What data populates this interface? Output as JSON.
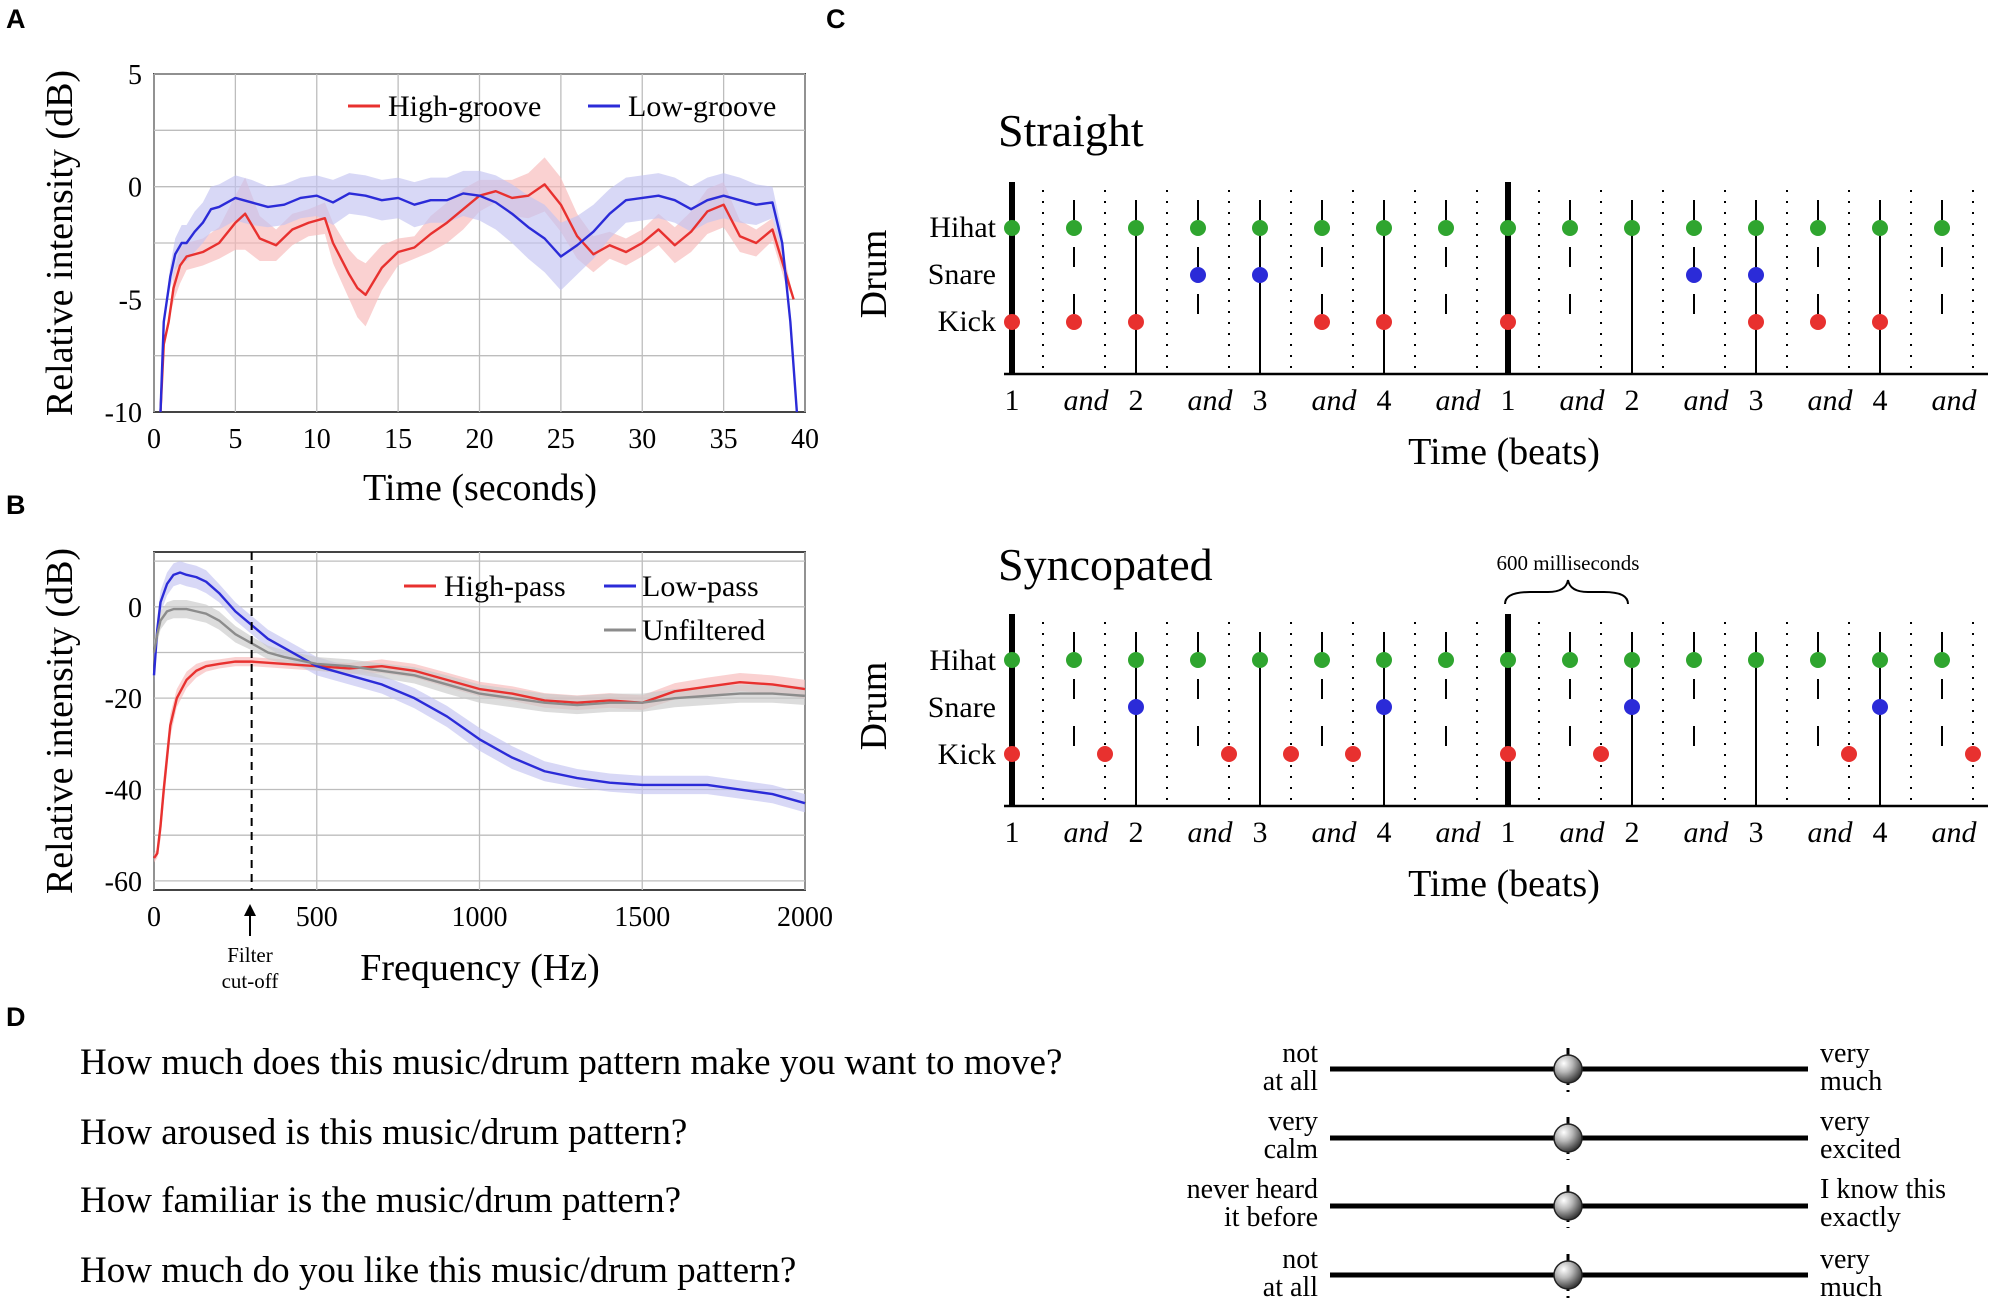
{
  "panel_labels": {
    "a": "A",
    "b": "B",
    "c": "C",
    "d": "D"
  },
  "colors": {
    "red": "#e8312f",
    "blue": "#2b2bd8",
    "gray": "#8c8c8c",
    "green": "#2fa52f",
    "red_band": "#f7b8b8",
    "blue_band": "#c3c3f1",
    "gray_band": "#c9c9c9"
  },
  "chart_data": [
    {
      "id": "A",
      "type": "line",
      "xlabel": "Time (seconds)",
      "ylabel": "Relative intensity (dB)",
      "xlim": [
        0,
        40
      ],
      "ylim": [
        -10,
        5
      ],
      "xticks": [
        "0",
        "5",
        "10",
        "15",
        "20",
        "25",
        "30",
        "35",
        "40"
      ],
      "yticks": [
        "5",
        "0",
        "-5",
        "-10"
      ],
      "grid": true,
      "legend_position": "top-right",
      "series": [
        {
          "name": "High-groove",
          "x": [
            0.4,
            0.6,
            0.9,
            1.2,
            1.6,
            2,
            3,
            4,
            5,
            5.6,
            6.5,
            7.5,
            8.5,
            9.5,
            10.5,
            11,
            12,
            12.5,
            13,
            14,
            15,
            16,
            17,
            18,
            19,
            20,
            21,
            22,
            23,
            24,
            25,
            26,
            27,
            28,
            29,
            30,
            31,
            32,
            33,
            34,
            35,
            36,
            37,
            38,
            38.8,
            39.3
          ],
          "y": [
            -10,
            -7,
            -6,
            -4.5,
            -3.5,
            -3.1,
            -2.9,
            -2.5,
            -1.6,
            -1.2,
            -2.3,
            -2.6,
            -1.9,
            -1.6,
            -1.4,
            -2.5,
            -3.9,
            -4.5,
            -4.8,
            -3.6,
            -2.9,
            -2.7,
            -2.1,
            -1.6,
            -1.0,
            -0.4,
            -0.2,
            -0.5,
            -0.4,
            0.1,
            -0.8,
            -2.2,
            -3.0,
            -2.6,
            -2.9,
            -2.5,
            -1.9,
            -2.6,
            -2.0,
            -1.1,
            -0.8,
            -2.2,
            -2.5,
            -1.9,
            -3.8,
            -5.0
          ],
          "band": [
            0,
            0,
            0,
            0.6,
            0.8,
            0.6,
            0.6,
            0.7,
            1.2,
            1.6,
            1.0,
            0.7,
            0.7,
            0.6,
            0.7,
            0.9,
            1.1,
            1.3,
            1.4,
            1.0,
            0.6,
            0.5,
            0.8,
            0.9,
            0.9,
            0.7,
            0.5,
            0.8,
            1.0,
            1.2,
            1.2,
            1.0,
            0.8,
            0.6,
            0.6,
            0.6,
            0.7,
            0.8,
            0.9,
            1.0,
            1.0,
            0.7,
            0.6,
            0.5,
            0.5,
            0
          ]
        },
        {
          "name": "Low-groove",
          "x": [
            0.4,
            0.6,
            1.0,
            1.3,
            1.7,
            2,
            2.5,
            3,
            3.5,
            4,
            5,
            6,
            7,
            8,
            9,
            10,
            11,
            12,
            13,
            14,
            15,
            16,
            17,
            18,
            19,
            20,
            21,
            22,
            23,
            24,
            25,
            26,
            27,
            28,
            29,
            30,
            31,
            32,
            33,
            34,
            35,
            36,
            37,
            38,
            38.6,
            39.1,
            39.5
          ],
          "y": [
            -10,
            -6,
            -4,
            -3.0,
            -2.5,
            -2.5,
            -2.0,
            -1.6,
            -1.0,
            -0.9,
            -0.5,
            -0.7,
            -0.9,
            -0.8,
            -0.5,
            -0.4,
            -0.7,
            -0.3,
            -0.4,
            -0.6,
            -0.5,
            -0.8,
            -0.6,
            -0.6,
            -0.3,
            -0.4,
            -0.7,
            -1.2,
            -1.8,
            -2.3,
            -3.1,
            -2.6,
            -2.0,
            -1.2,
            -0.6,
            -0.5,
            -0.4,
            -0.6,
            -1.0,
            -0.6,
            -0.4,
            -0.6,
            -0.8,
            -0.7,
            -2.5,
            -6.0,
            -10
          ],
          "band": [
            0,
            0,
            0.5,
            0.7,
            0.8,
            0.8,
            0.9,
            0.9,
            1.0,
            1.0,
            1.0,
            1.0,
            0.9,
            0.9,
            0.9,
            0.9,
            1.0,
            0.9,
            0.9,
            0.9,
            0.9,
            1.0,
            1.0,
            1.0,
            1.0,
            1.1,
            1.2,
            1.3,
            1.4,
            1.5,
            1.5,
            1.3,
            1.2,
            1.1,
            1.0,
            1.0,
            1.0,
            1.0,
            1.0,
            1.0,
            1.0,
            1.0,
            0.9,
            0.7,
            0.5,
            0,
            0
          ]
        }
      ]
    },
    {
      "id": "B",
      "type": "line",
      "xlabel": "Frequency (Hz)",
      "ylabel": "Relative intensity (dB)",
      "xlim": [
        0,
        2000
      ],
      "ylim": [
        -62,
        12
      ],
      "xticks": [
        "0",
        "500",
        "1000",
        "1500",
        "2000"
      ],
      "yticks": [
        "0",
        "-20",
        "-40",
        "-60"
      ],
      "grid": true,
      "legend_position": "top-right",
      "annotation": {
        "x": 300,
        "label_line1": "Filter",
        "label_line2": "cut-off"
      },
      "series": [
        {
          "name": "High-pass",
          "x": [
            0,
            10,
            20,
            30,
            40,
            50,
            70,
            100,
            130,
            160,
            200,
            250,
            300,
            400,
            500,
            600,
            700,
            800,
            900,
            1000,
            1100,
            1200,
            1300,
            1400,
            1500,
            1600,
            1700,
            1800,
            1900,
            2000
          ],
          "y": [
            -55,
            -54,
            -48,
            -40,
            -33,
            -26,
            -20,
            -16,
            -14,
            -13,
            -12.5,
            -12,
            -12,
            -12.5,
            -13,
            -13.5,
            -13,
            -14,
            -16,
            -18,
            -19,
            -20.5,
            -21,
            -20.5,
            -21,
            -18.5,
            -17.5,
            -16.5,
            -17,
            -18
          ],
          "band": [
            1,
            1,
            3,
            3,
            3,
            2.5,
            2,
            1.8,
            1.5,
            1.2,
            1,
            1,
            1,
            1,
            1,
            1.2,
            1.5,
            1.5,
            1.6,
            1.6,
            1.6,
            1.6,
            1.6,
            1.6,
            1.6,
            1.8,
            2,
            2,
            2,
            2
          ]
        },
        {
          "name": "Low-pass",
          "x": [
            0,
            10,
            20,
            40,
            60,
            80,
            100,
            130,
            160,
            200,
            250,
            300,
            350,
            400,
            500,
            600,
            700,
            800,
            900,
            1000,
            1100,
            1200,
            1300,
            1400,
            1500,
            1600,
            1700,
            1800,
            1900,
            2000
          ],
          "y": [
            -15,
            -5,
            1,
            5,
            7,
            7.5,
            7,
            6.5,
            5.5,
            3,
            -1,
            -4,
            -7,
            -9,
            -13,
            -15,
            -17,
            -20,
            -24,
            -29,
            -33,
            -36,
            -37.5,
            -38.5,
            -39,
            -39,
            -39,
            -40,
            -41,
            -43
          ],
          "band": [
            2,
            2.5,
            2.5,
            2.5,
            2.5,
            2.5,
            2.5,
            2.5,
            2.5,
            2,
            2,
            2,
            2,
            2,
            2,
            2,
            2,
            2.2,
            2.3,
            2.5,
            2.5,
            2.2,
            2,
            2,
            2,
            2,
            2,
            2,
            2,
            2
          ]
        },
        {
          "name": "Unfiltered",
          "x": [
            0,
            10,
            20,
            40,
            60,
            80,
            100,
            130,
            160,
            200,
            250,
            300,
            350,
            400,
            500,
            600,
            700,
            800,
            900,
            1000,
            1100,
            1200,
            1300,
            1400,
            1500,
            1600,
            1700,
            1800,
            1900,
            2000
          ],
          "y": [
            -10,
            -6,
            -3,
            -1,
            -0.5,
            -0.5,
            -0.5,
            -1,
            -1.5,
            -3,
            -6,
            -8,
            -10,
            -11,
            -12.5,
            -13,
            -14,
            -15,
            -17,
            -19,
            -20,
            -21,
            -21.5,
            -21,
            -21,
            -20,
            -19.5,
            -19,
            -19,
            -19.5
          ],
          "band": [
            2,
            2,
            2,
            2,
            2,
            2,
            2,
            2,
            2,
            2,
            1.8,
            1.5,
            1.5,
            1.5,
            1.5,
            1.5,
            1.6,
            1.8,
            2,
            2,
            2,
            2,
            2,
            2,
            2,
            2,
            2,
            2,
            2,
            2
          ]
        }
      ]
    },
    {
      "id": "C",
      "type": "scatter",
      "xlabel": "Time (beats)",
      "ylabel": "Drum",
      "instruments": [
        "Hihat",
        "Snare",
        "Kick"
      ],
      "beat_labels": [
        "1",
        "and",
        "2",
        "and",
        "3",
        "and",
        "4",
        "and",
        "1",
        "and",
        "2",
        "and",
        "3",
        "and",
        "4",
        "and"
      ],
      "annotation": "600 milliseconds",
      "patterns": [
        {
          "title": "Straight",
          "hihat": [
            0,
            1,
            2,
            3,
            4,
            5,
            6,
            7,
            8,
            9,
            10,
            11,
            12,
            13,
            14,
            15
          ],
          "snare": [
            3,
            4,
            11,
            12
          ],
          "kick": [
            0,
            1,
            2,
            5,
            6,
            8,
            12,
            13,
            14
          ]
        },
        {
          "title": "Syncopated",
          "hihat": [
            0,
            1,
            2,
            3,
            4,
            5,
            6,
            7,
            8,
            9,
            10,
            11,
            12,
            13,
            14,
            15
          ],
          "snare": [
            2,
            6,
            10,
            14
          ],
          "kick": [
            0,
            1.5,
            3.5,
            4.5,
            5.5,
            8,
            9.5,
            13.5,
            15.5
          ]
        }
      ]
    }
  ],
  "questions": [
    {
      "text": "How much does this music/drum pattern make you want to move?",
      "left_line1": "not",
      "left_line2": "at all",
      "right_line1": "very",
      "right_line2": "much",
      "value": 0.5
    },
    {
      "text": "How aroused is this music/drum pattern?",
      "left_line1": "very",
      "left_line2": "calm",
      "right_line1": "very",
      "right_line2": "excited",
      "value": 0.5
    },
    {
      "text": "How familiar is the music/drum pattern?",
      "left_line1": "never heard",
      "left_line2": "it before",
      "right_line1": "I know this",
      "right_line2": "exactly",
      "value": 0.5
    },
    {
      "text": "How much do you like this music/drum pattern?",
      "left_line1": "not",
      "left_line2": "at all",
      "right_line1": "very",
      "right_line2": "much",
      "value": 0.5
    }
  ]
}
